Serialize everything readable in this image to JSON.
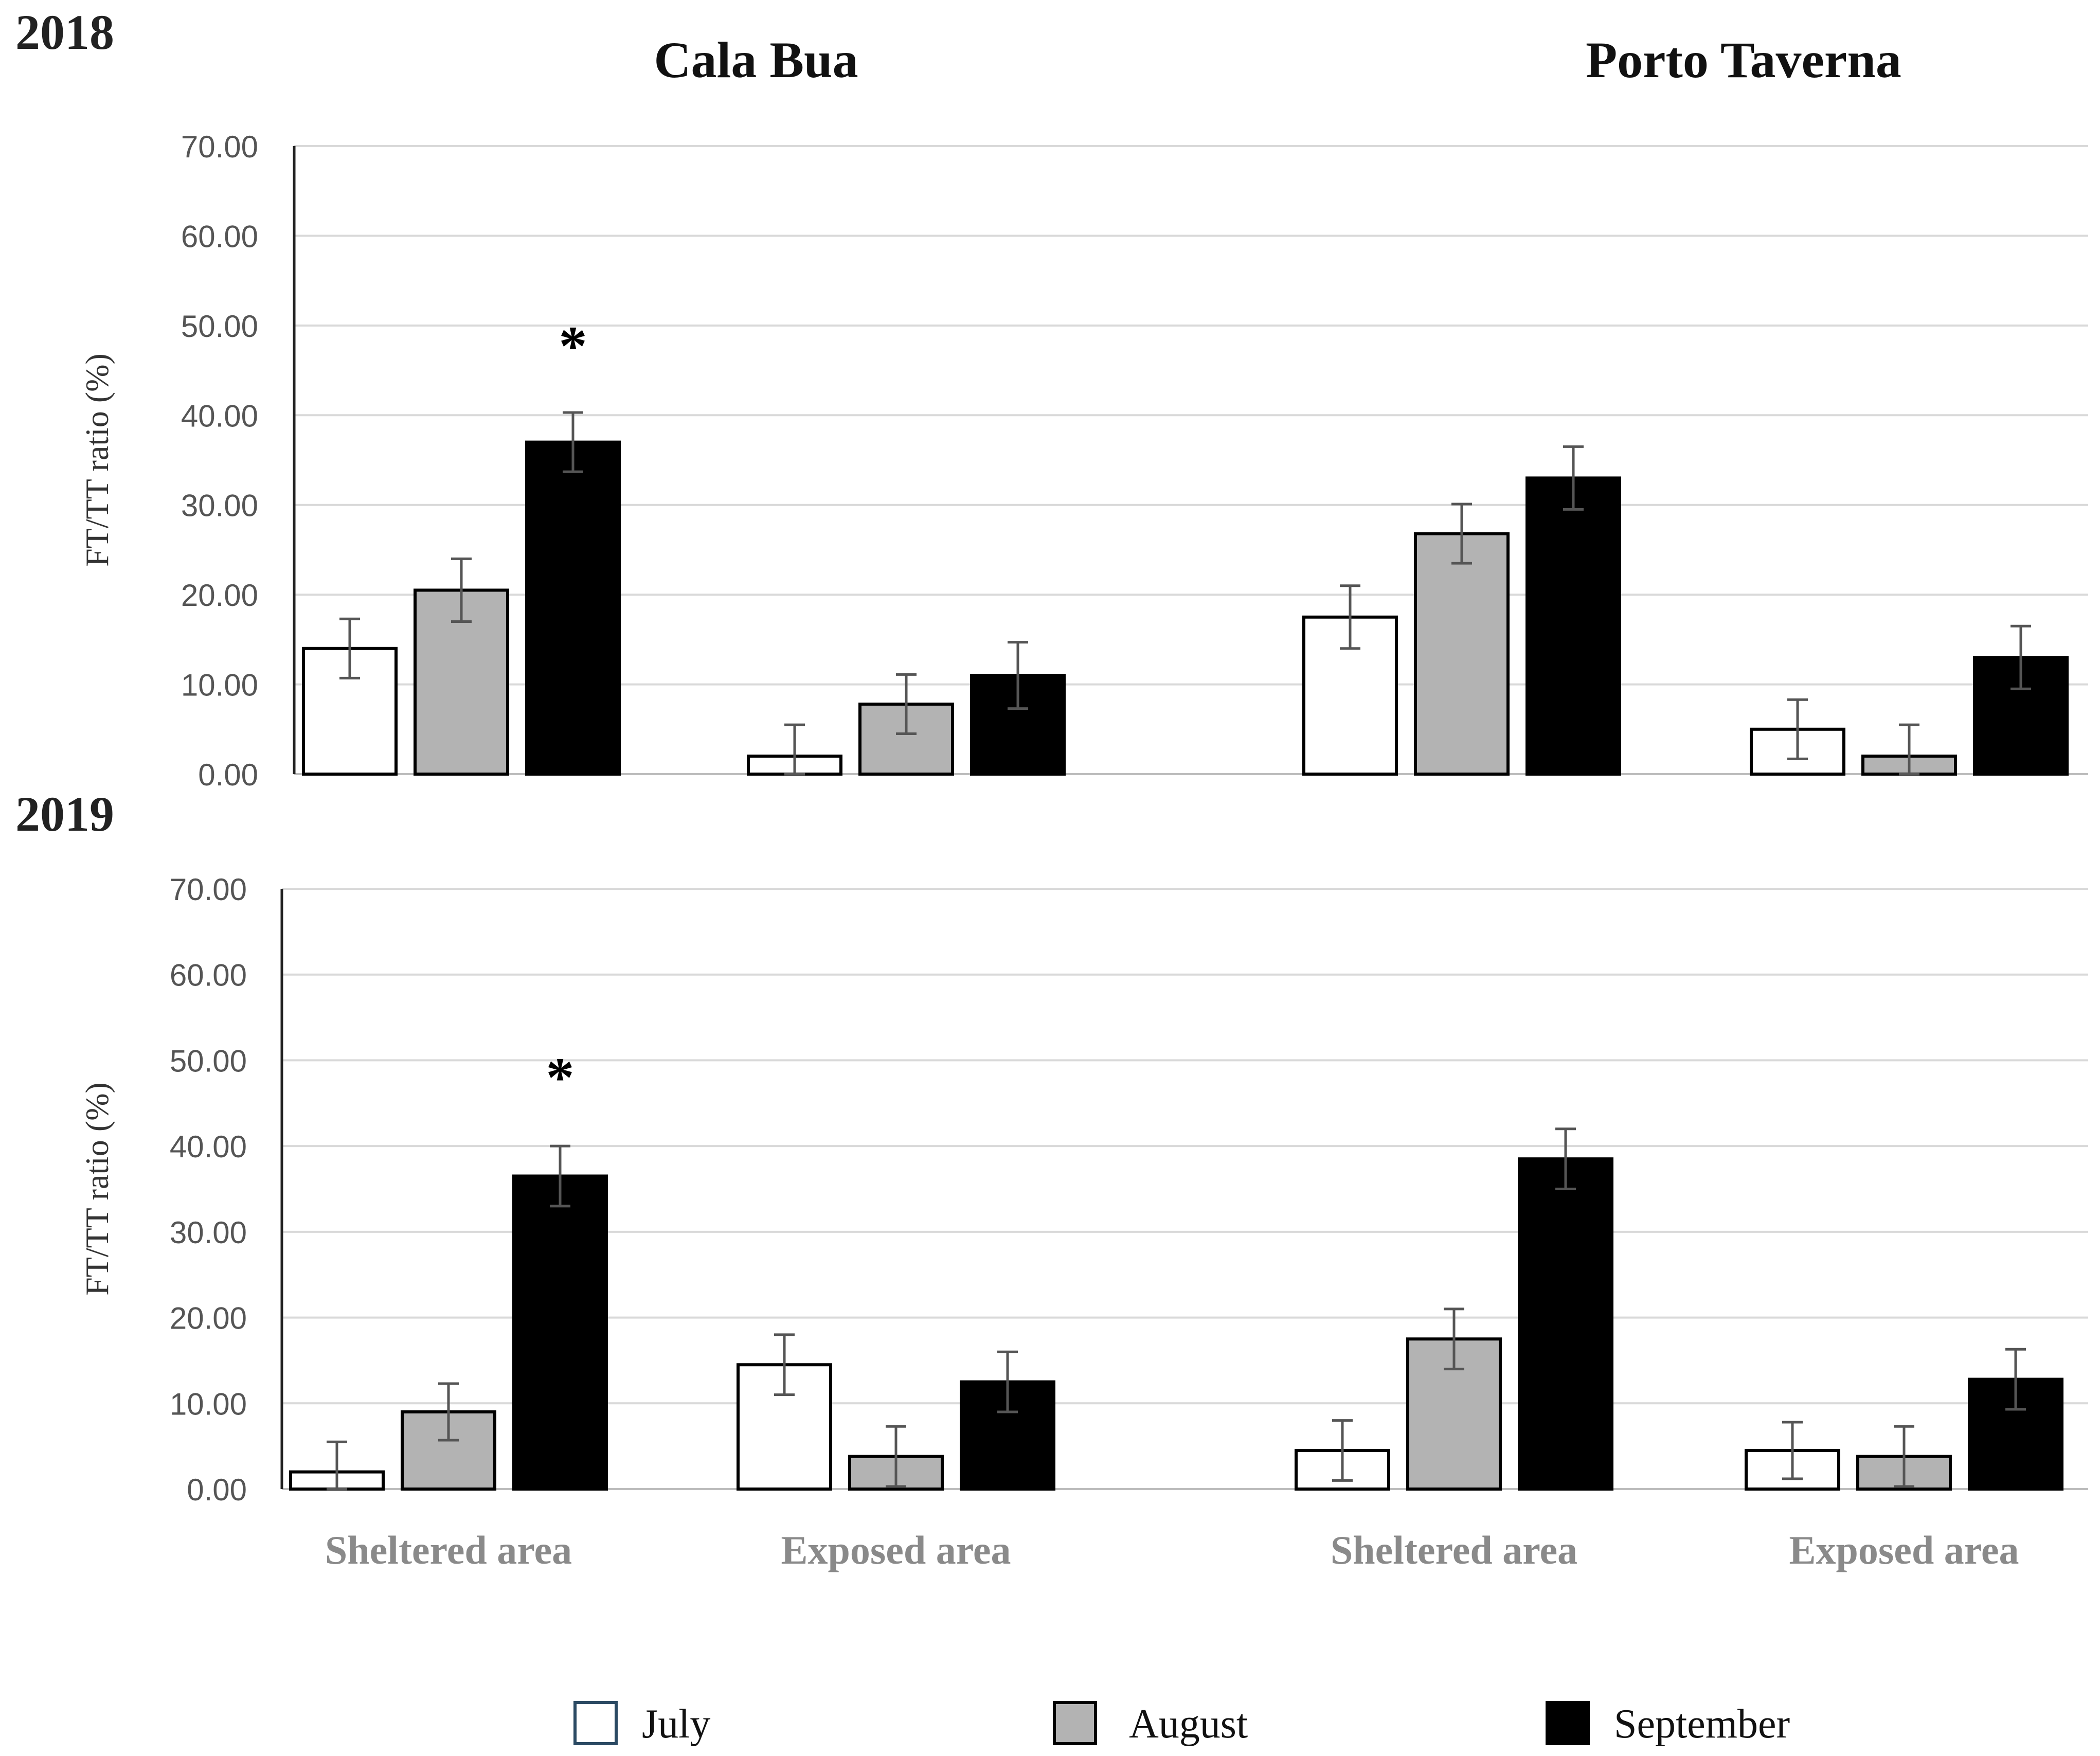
{
  "chart_data": {
    "type": "bar",
    "site_titles": [
      "Cala Bua",
      "Porto Taverna"
    ],
    "categories": [
      "Sheltered area",
      "Exposed area",
      "Sheltered area",
      "Exposed area"
    ],
    "ylabel": "FT/TT ratio (%)",
    "ylim": [
      0,
      70
    ],
    "yticks": [
      "0.00",
      "10.00",
      "20.00",
      "30.00",
      "40.00",
      "50.00",
      "60.00",
      "70.00"
    ],
    "legend": [
      {
        "name": "July",
        "color": "#ffffff"
      },
      {
        "name": "August",
        "color": "#b3b3b3"
      },
      {
        "name": "September",
        "color": "#000000"
      }
    ],
    "panels": [
      {
        "year": "2018",
        "series": [
          {
            "name": "July",
            "values": [
              14.0,
              2.0,
              17.5,
              5.0
            ],
            "errors": [
              3.3,
              3.5,
              3.5,
              3.3
            ]
          },
          {
            "name": "August",
            "values": [
              20.5,
              7.8,
              26.8,
              2.0
            ],
            "errors": [
              3.5,
              3.3,
              3.3,
              3.5
            ]
          },
          {
            "name": "September",
            "values": [
              37.0,
              11.0,
              33.0,
              13.0
            ],
            "errors": [
              3.3,
              3.7,
              3.5,
              3.5
            ]
          }
        ],
        "annotations": [
          {
            "text": "*",
            "category": 0,
            "series": 2
          }
        ]
      },
      {
        "year": "2019",
        "series": [
          {
            "name": "July",
            "values": [
              2.0,
              14.5,
              4.5,
              4.5
            ],
            "errors": [
              3.5,
              3.5,
              3.5,
              3.3
            ]
          },
          {
            "name": "August",
            "values": [
              9.0,
              3.8,
              17.5,
              3.8
            ],
            "errors": [
              3.3,
              3.5,
              3.5,
              3.5
            ]
          },
          {
            "name": "September",
            "values": [
              36.5,
              12.5,
              38.5,
              12.8
            ],
            "errors": [
              3.5,
              3.5,
              3.5,
              3.5
            ]
          }
        ],
        "annotations": [
          {
            "text": "*",
            "category": 0,
            "series": 2
          }
        ]
      }
    ]
  }
}
